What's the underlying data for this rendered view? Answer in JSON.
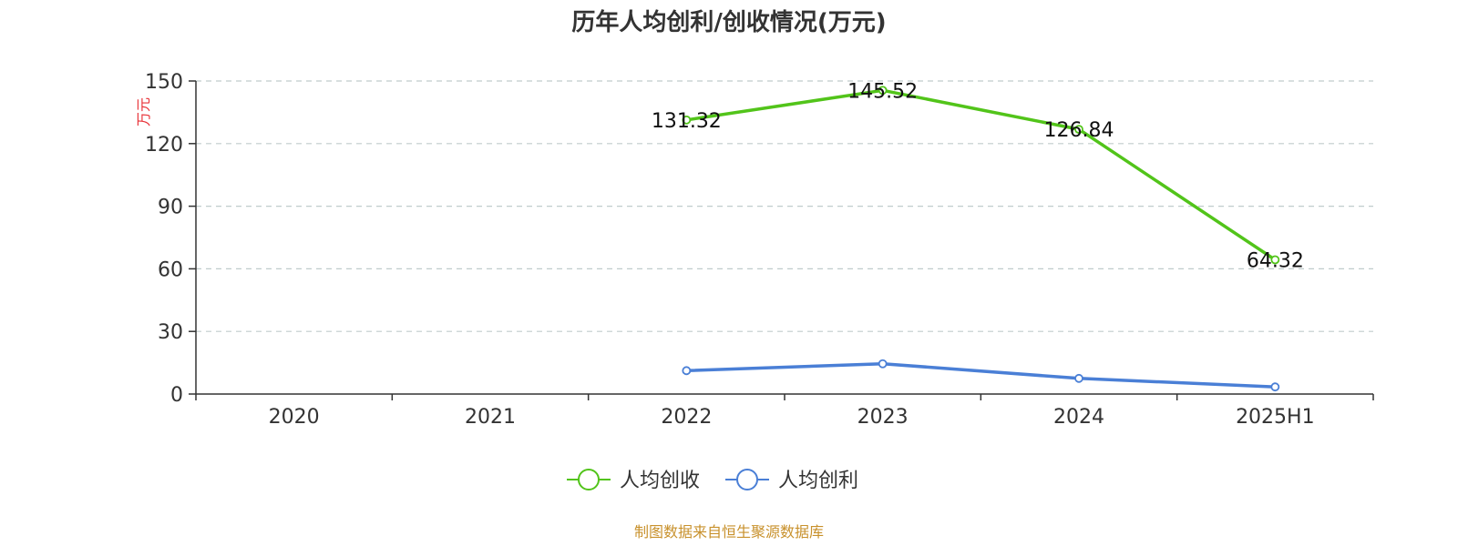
{
  "chart_data": {
    "type": "line",
    "title": "历年人均创利/创收情况(万元)",
    "ylabel": "万元",
    "categories": [
      "2020",
      "2021",
      "2022",
      "2023",
      "2024",
      "2025H1"
    ],
    "ylim": [
      0,
      150
    ],
    "yticks": [
      "0",
      "30",
      "60",
      "90",
      "120",
      "150"
    ],
    "grid": true,
    "legend_position": "bottom",
    "series": [
      {
        "name": "人均创收",
        "color": "#52c41a",
        "values": [
          null,
          null,
          131.32,
          145.52,
          126.84,
          64.32
        ],
        "labels": [
          "",
          "",
          "131.32",
          "145.52",
          "126.84",
          "64.32"
        ]
      },
      {
        "name": "人均创利",
        "color": "#4a7fd6",
        "values": [
          null,
          null,
          11.2,
          14.5,
          7.5,
          3.4
        ],
        "labels": [
          "",
          "",
          "",
          "",
          "",
          ""
        ]
      }
    ]
  },
  "colors": {
    "ylabel": "#e8343a",
    "source": "#c8912c",
    "axis": "#333333",
    "grid": "#c0cccc"
  },
  "source_text": "制图数据来自恒生聚源数据库"
}
